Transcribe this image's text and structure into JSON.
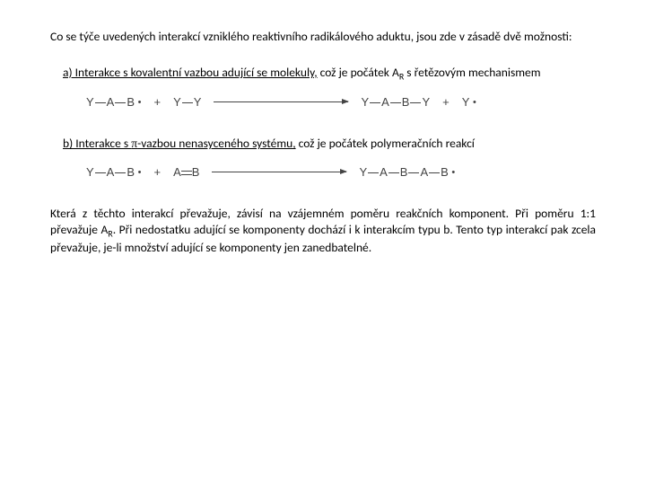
{
  "intro": "Co se týče uvedených interakcí vzniklého reaktivního radikálového aduktu, jsou zde v zásadě dvě možnosti:",
  "optionA": {
    "label_u": "a) Interakce s kovalentní vazbou adující se molekuly,",
    "rest": " což je počátek A",
    "sub": "R",
    "rest2": " s řetězovým mechanismem"
  },
  "optionB": {
    "label_u1": "b) Interakce s ",
    "pi": "π",
    "label_u2": "-vazbou nenasyceného systému,",
    "rest": " což je počátek polymeračních reakcí"
  },
  "reaction1": {
    "lhs1": {
      "Y": "Y",
      "A": "A",
      "B": "B"
    },
    "plus": "+",
    "lhs2": {
      "Y1": "Y",
      "Y2": "Y"
    },
    "rhs1": {
      "Y": "Y",
      "A": "A",
      "B": "B",
      "Y2": "Y"
    },
    "rhs2": "Y"
  },
  "reaction2": {
    "lhs1": {
      "Y": "Y",
      "A": "A",
      "B": "B"
    },
    "plus": "+",
    "lhs2": {
      "A": "A",
      "B": "B"
    },
    "rhs": {
      "Y": "Y",
      "A": "A",
      "B": "B",
      "A2": "A",
      "B2": "B"
    }
  },
  "closing": {
    "t1": "Která z těchto interakcí převažuje, závisí na vzájemném poměru reakčních komponent. Při poměru 1:1 převažuje A",
    "sub": "R",
    "t2": ". Při nedostatku adující se komponenty dochází i k interakcím typu b. Tento typ interakcí pak zcela převažuje, je-li množství adující se komponenty jen zanedbatelné."
  },
  "colors": {
    "text": "#000000",
    "reaction": "#444444",
    "bg": "#ffffff"
  }
}
